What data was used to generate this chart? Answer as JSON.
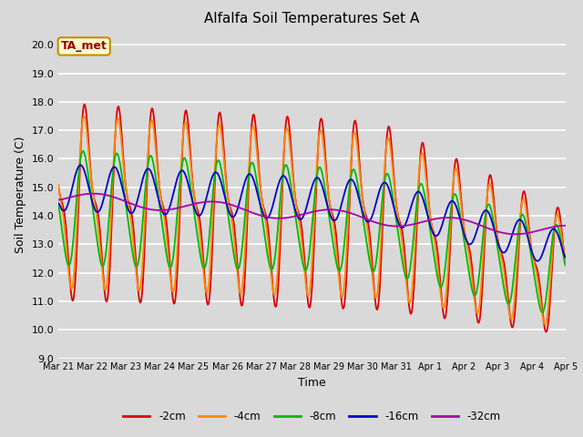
{
  "title": "Alfalfa Soil Temperatures Set A",
  "xlabel": "Time",
  "ylabel": "Soil Temperature (C)",
  "ylim": [
    9.0,
    20.5
  ],
  "yticks": [
    9.0,
    10.0,
    11.0,
    12.0,
    13.0,
    14.0,
    15.0,
    16.0,
    17.0,
    18.0,
    19.0,
    20.0
  ],
  "background_color": "#d9d9d9",
  "plot_bg_color": "#d9d9d9",
  "grid_color": "#ffffff",
  "annotation_label": "TA_met",
  "annotation_bg": "#ffffcc",
  "annotation_border": "#cc8800",
  "series_colors": {
    "-2cm": "#dd0000",
    "-4cm": "#ff8800",
    "-8cm": "#00bb00",
    "-16cm": "#0000cc",
    "-32cm": "#aa00aa"
  },
  "legend_entries": [
    "-2cm",
    "-4cm",
    "-8cm",
    "-16cm",
    "-32cm"
  ],
  "x_tick_labels": [
    "Mar 21",
    "Mar 22",
    "Mar 23",
    "Mar 24",
    "Mar 25",
    "Mar 26",
    "Mar 27",
    "Mar 28",
    "Mar 29",
    "Mar 30",
    "Mar 31",
    "Apr 1",
    "Apr 2",
    "Apr 3",
    "Apr 4",
    "Apr 5"
  ],
  "figsize": [
    6.4,
    4.8
  ],
  "dpi": 100
}
